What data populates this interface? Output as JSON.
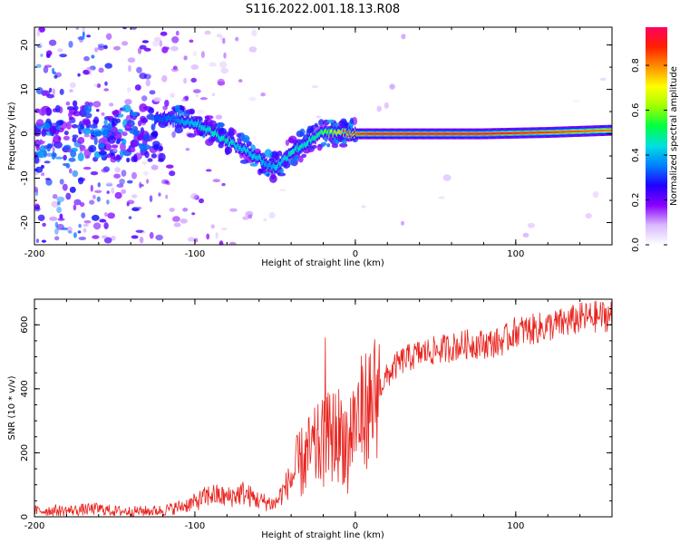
{
  "figure": {
    "title": "S116.2022.001.18.13.R08"
  },
  "chart_data": [
    {
      "type": "heatmap",
      "title": "",
      "xlabel": "Height of straight line (km)",
      "ylabel": "Frequency (Hz)",
      "xlim": [
        -200,
        160
      ],
      "ylim": [
        -25,
        24
      ],
      "x_ticks": [
        -200,
        -100,
        0,
        100
      ],
      "y_ticks": [
        -20,
        -10,
        0,
        10,
        20
      ],
      "colorbar": {
        "label": "Normalized spectral amplitude",
        "ticks": [
          "0.0",
          "0.2",
          "0.4",
          "0.6",
          "0.8"
        ],
        "range": [
          0,
          0.97
        ],
        "colors": [
          "#ffffff",
          "#d9b8ff",
          "#8800ff",
          "#2000ff",
          "#0080ff",
          "#00e0e0",
          "#00ff40",
          "#a0ff00",
          "#ffff00",
          "#ff9000",
          "#ff2000",
          "#ff0060"
        ]
      },
      "ridge": {
        "x": [
          -120,
          -110,
          -100,
          -90,
          -80,
          -70,
          -60,
          -55,
          -50,
          -45,
          -40,
          -35,
          -30,
          -25,
          -20,
          -15,
          -10,
          -5,
          0,
          10,
          40,
          80,
          120,
          160
        ],
        "y": [
          3.5,
          3,
          2.5,
          0.5,
          -1.5,
          -3.5,
          -5.5,
          -7,
          -7.5,
          -6,
          -4,
          -3,
          -2,
          -1,
          0.5,
          0,
          0.5,
          0,
          0,
          0,
          0,
          0,
          0.3,
          0.8
        ],
        "amplitude": [
          0.35,
          0.4,
          0.45,
          0.5,
          0.5,
          0.45,
          0.45,
          0.4,
          0.45,
          0.45,
          0.5,
          0.5,
          0.5,
          0.55,
          0.6,
          0.7,
          0.8,
          0.85,
          0.9,
          0.95,
          0.95,
          0.95,
          0.9,
          0.85
        ]
      },
      "grid": false
    },
    {
      "type": "line",
      "title": "",
      "xlabel": "Height of straight line (km)",
      "ylabel": "SNR (10 * v/v)",
      "xlim": [
        -200,
        160
      ],
      "ylim": [
        0,
        680
      ],
      "x_ticks": [
        -200,
        -100,
        0,
        100
      ],
      "y_ticks": [
        0,
        200,
        400,
        600
      ],
      "series": [
        {
          "color": "#e8231e",
          "x": [
            -200,
            -190,
            -180,
            -170,
            -160,
            -150,
            -140,
            -130,
            -120,
            -110,
            -100,
            -90,
            -80,
            -70,
            -60,
            -55,
            -50,
            -45,
            -40,
            -35,
            -30,
            -25,
            -20,
            -15,
            -10,
            -5,
            0,
            5,
            10,
            15,
            20,
            25,
            30,
            40,
            50,
            60,
            70,
            80,
            90,
            95,
            100,
            110,
            120,
            130,
            140,
            150,
            160
          ],
          "y": [
            18,
            20,
            19,
            22,
            25,
            18,
            17,
            18,
            20,
            30,
            45,
            70,
            60,
            75,
            50,
            45,
            40,
            80,
            120,
            160,
            190,
            210,
            230,
            250,
            260,
            240,
            300,
            330,
            360,
            400,
            440,
            470,
            490,
            510,
            520,
            530,
            540,
            540,
            545,
            560,
            580,
            585,
            595,
            605,
            620,
            625,
            630
          ]
        }
      ],
      "grid": false
    }
  ]
}
